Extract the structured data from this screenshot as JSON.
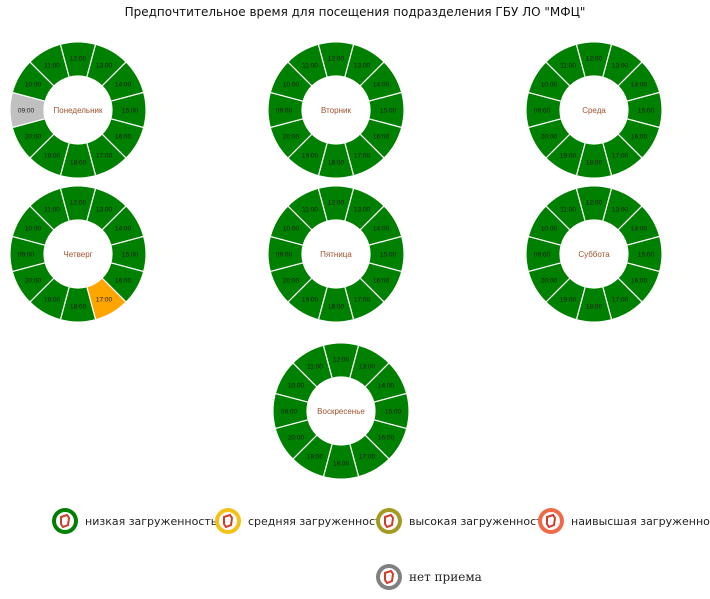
{
  "header": {
    "title": "Предпочтительное время для посещения подразделения ГБУ ЛО \"МФЦ\""
  },
  "colors": {
    "low": "#008000",
    "medium": "#FFA500",
    "none": "#C0C0C0",
    "label": "#A0522D"
  },
  "chart_data": [
    {
      "type": "pie",
      "title": "Понедельник",
      "categories": [
        "09:00",
        "10:00",
        "11:00",
        "12:00",
        "13:00",
        "14:00",
        "15:00",
        "16:00",
        "17:00",
        "18:00",
        "19:00",
        "20:00"
      ],
      "values": [
        1,
        1,
        1,
        1,
        1,
        1,
        1,
        1,
        1,
        1,
        1,
        1
      ],
      "status": [
        "none",
        "low",
        "low",
        "low",
        "low",
        "low",
        "low",
        "low",
        "low",
        "low",
        "low",
        "low"
      ]
    },
    {
      "type": "pie",
      "title": "Вторник",
      "categories": [
        "09:00",
        "10:00",
        "11:00",
        "12:00",
        "13:00",
        "14:00",
        "15:00",
        "16:00",
        "17:00",
        "18:00",
        "19:00",
        "20:00"
      ],
      "values": [
        1,
        1,
        1,
        1,
        1,
        1,
        1,
        1,
        1,
        1,
        1,
        1
      ],
      "status": [
        "low",
        "low",
        "low",
        "low",
        "low",
        "low",
        "low",
        "low",
        "low",
        "low",
        "low",
        "low"
      ]
    },
    {
      "type": "pie",
      "title": "Среда",
      "categories": [
        "09:00",
        "10:00",
        "11:00",
        "12:00",
        "13:00",
        "14:00",
        "15:00",
        "16:00",
        "17:00",
        "18:00",
        "19:00",
        "20:00"
      ],
      "values": [
        1,
        1,
        1,
        1,
        1,
        1,
        1,
        1,
        1,
        1,
        1,
        1
      ],
      "status": [
        "low",
        "low",
        "low",
        "low",
        "low",
        "low",
        "low",
        "low",
        "low",
        "low",
        "low",
        "low"
      ]
    },
    {
      "type": "pie",
      "title": "Четверг",
      "categories": [
        "09:00",
        "10:00",
        "11:00",
        "12:00",
        "13:00",
        "14:00",
        "15:00",
        "16:00",
        "17:00",
        "18:00",
        "19:00",
        "20:00"
      ],
      "values": [
        1,
        1,
        1,
        1,
        1,
        1,
        1,
        1,
        1,
        1,
        1,
        1
      ],
      "status": [
        "low",
        "low",
        "low",
        "low",
        "low",
        "low",
        "low",
        "low",
        "medium",
        "low",
        "low",
        "low"
      ]
    },
    {
      "type": "pie",
      "title": "Пятница",
      "categories": [
        "09:00",
        "10:00",
        "11:00",
        "12:00",
        "13:00",
        "14:00",
        "15:00",
        "16:00",
        "17:00",
        "18:00",
        "19:00",
        "20:00"
      ],
      "values": [
        1,
        1,
        1,
        1,
        1,
        1,
        1,
        1,
        1,
        1,
        1,
        1
      ],
      "status": [
        "low",
        "low",
        "low",
        "low",
        "low",
        "low",
        "low",
        "low",
        "low",
        "low",
        "low",
        "low"
      ]
    },
    {
      "type": "pie",
      "title": "Суббота",
      "categories": [
        "09:00",
        "10:00",
        "11:00",
        "12:00",
        "13:00",
        "14:00",
        "15:00",
        "16:00",
        "17:00",
        "18:00",
        "19:00",
        "20:00"
      ],
      "values": [
        1,
        1,
        1,
        1,
        1,
        1,
        1,
        1,
        1,
        1,
        1,
        1
      ],
      "status": [
        "low",
        "low",
        "low",
        "low",
        "low",
        "low",
        "low",
        "low",
        "low",
        "low",
        "low",
        "low"
      ]
    },
    {
      "type": "pie",
      "title": "Воскресенье",
      "categories": [
        "09:00",
        "10:00",
        "11:00",
        "12:00",
        "13:00",
        "14:00",
        "15:00",
        "16:00",
        "17:00",
        "18:00",
        "19:00",
        "20:00"
      ],
      "values": [
        1,
        1,
        1,
        1,
        1,
        1,
        1,
        1,
        1,
        1,
        1,
        1
      ],
      "status": [
        "low",
        "low",
        "low",
        "low",
        "low",
        "low",
        "low",
        "low",
        "low",
        "low",
        "low",
        "low"
      ]
    }
  ],
  "legend": {
    "items": [
      {
        "label": "низкая загруженность",
        "color": "#008000",
        "icon": "low-load-icon"
      },
      {
        "label": "средняя загруженность",
        "color": "#F2C218",
        "icon": "medium-load-icon"
      },
      {
        "label": "высокая загруженность",
        "color": "#A39A22",
        "icon": "high-load-icon"
      },
      {
        "label": "наивысшая загруженность",
        "color": "#F06A4A",
        "icon": "highest-load-icon"
      },
      {
        "label": "нет приема",
        "color": "#808080",
        "icon": "no-reception-icon"
      }
    ]
  }
}
